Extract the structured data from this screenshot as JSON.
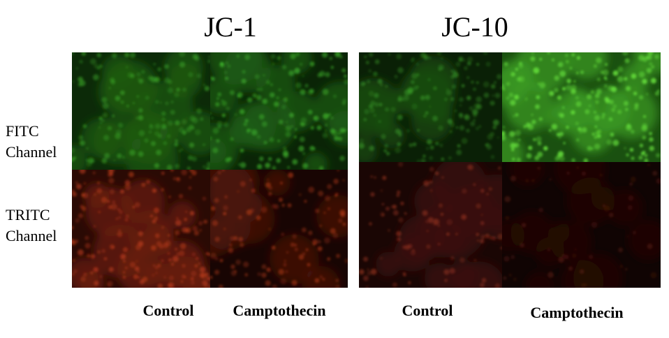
{
  "panels": [
    {
      "title": "JC-1",
      "columns": [
        "Control",
        "Camptothecin"
      ]
    },
    {
      "title": "JC-10",
      "columns": [
        "Control",
        "Camptothecin"
      ]
    }
  ],
  "rows": [
    [
      "FITC",
      "Channel"
    ],
    [
      "TRITC",
      "Channel"
    ]
  ]
}
